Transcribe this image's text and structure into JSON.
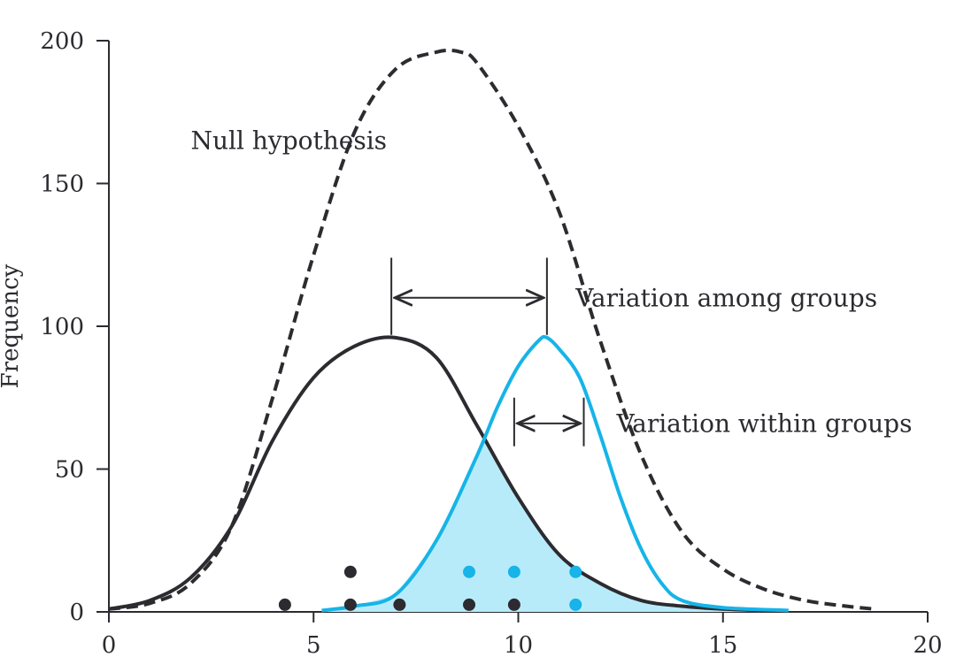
{
  "chart_data": {
    "type": "line",
    "title": "",
    "xlabel": "",
    "ylabel": "Frequency",
    "xlim": [
      0,
      20
    ],
    "ylim": [
      0,
      200
    ],
    "x_ticks": [
      "0",
      "5",
      "10",
      "15",
      "20"
    ],
    "y_ticks": [
      "0",
      "50",
      "100",
      "150",
      "200"
    ],
    "grid": false,
    "colors": {
      "dark": "#2b2b30",
      "blue": "#16b4e8",
      "fill": "#b8ebfa"
    },
    "series": [
      {
        "style": "dashed",
        "color": "#2b2b30",
        "points": [
          [
            0,
            1
          ],
          [
            1,
            3
          ],
          [
            2,
            10
          ],
          [
            3,
            30
          ],
          [
            4,
            75
          ],
          [
            5,
            125
          ],
          [
            6,
            168
          ],
          [
            7,
            190
          ],
          [
            8,
            196
          ],
          [
            8.6,
            196
          ],
          [
            9,
            192
          ],
          [
            10,
            170
          ],
          [
            11,
            140
          ],
          [
            12,
            95
          ],
          [
            13,
            55
          ],
          [
            14,
            28
          ],
          [
            15,
            15
          ],
          [
            16,
            8
          ],
          [
            17,
            4
          ],
          [
            18,
            2
          ],
          [
            18.7,
            1
          ]
        ]
      },
      {
        "style": "solid",
        "color": "#2b2b30",
        "points": [
          [
            0,
            1
          ],
          [
            1,
            4
          ],
          [
            2,
            12
          ],
          [
            3,
            30
          ],
          [
            4,
            60
          ],
          [
            5,
            82
          ],
          [
            6,
            93
          ],
          [
            7,
            96
          ],
          [
            8,
            89
          ],
          [
            9,
            65
          ],
          [
            10,
            40
          ],
          [
            11,
            20
          ],
          [
            12,
            10
          ],
          [
            13,
            4
          ],
          [
            14,
            2
          ],
          [
            15,
            1
          ],
          [
            16,
            0.5
          ]
        ]
      },
      {
        "style": "solid",
        "color": "#16b4e8",
        "points": [
          [
            5.2,
            0.5
          ],
          [
            6,
            2
          ],
          [
            7,
            6
          ],
          [
            8,
            25
          ],
          [
            9,
            55
          ],
          [
            9.5,
            72
          ],
          [
            10,
            86
          ],
          [
            10.5,
            95
          ],
          [
            10.7,
            96
          ],
          [
            11,
            92
          ],
          [
            11.5,
            82
          ],
          [
            12,
            62
          ],
          [
            12.5,
            40
          ],
          [
            13,
            22
          ],
          [
            13.5,
            10
          ],
          [
            14,
            4
          ],
          [
            15,
            1.5
          ],
          [
            16.6,
            0.5
          ]
        ]
      }
    ],
    "points_dark": [
      [
        4.3,
        2.5
      ],
      [
        5.9,
        2.5
      ],
      [
        5.9,
        14
      ],
      [
        7.1,
        2.5
      ],
      [
        8.8,
        2.5
      ],
      [
        9.9,
        2.5
      ]
    ],
    "points_blue": [
      [
        8.8,
        14
      ],
      [
        9.9,
        14
      ],
      [
        11.4,
        14
      ],
      [
        11.4,
        2.5
      ]
    ],
    "annotations": {
      "null": {
        "text": "Null hypothesis",
        "x": 2.0,
        "y": 162
      },
      "among": {
        "text": "Variation among groups",
        "x": 11.4,
        "y": 107,
        "arrow": [
          6.9,
          10.7
        ],
        "arrow_y": 110,
        "bar_top": 124,
        "bar_bottom": 97
      },
      "within": {
        "text": "Variation within groups",
        "x": 12.4,
        "y": 63,
        "arrow": [
          9.9,
          11.6
        ],
        "arrow_y": 66,
        "bar_top": 75,
        "bar_bottom": 58
      }
    }
  }
}
